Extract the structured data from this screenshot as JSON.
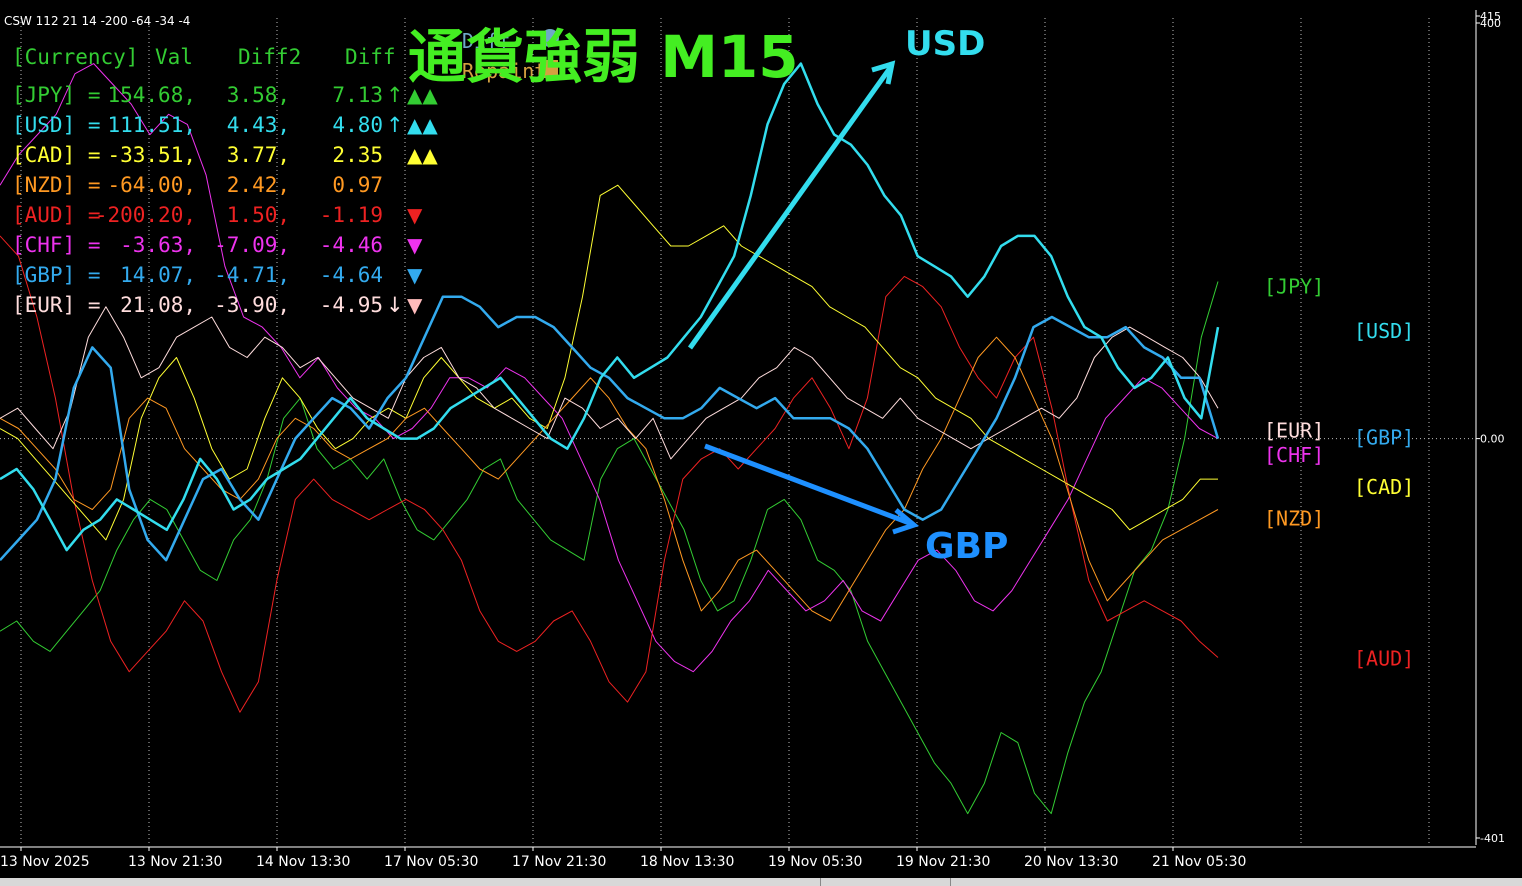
{
  "indicator_label": "CSW 112 21 14 -200 -64 -34 -4",
  "title": "通貨強弱  M15",
  "overlay_buttons": [
    {
      "label": "Diff",
      "color": "#6fa8c8"
    },
    {
      "label": "Repaint",
      "color": "#d4a040"
    }
  ],
  "table": {
    "headers": [
      "[Currency]",
      "Val",
      "Diff2",
      "Diff"
    ],
    "rows": [
      {
        "currency": "[JPY] =",
        "val": "154.68,",
        "diff2": "3.58,",
        "diff": "7.13",
        "mark": "↑",
        "signal": "▲▲",
        "color": "#33cc33",
        "signal_color": "#33cc33"
      },
      {
        "currency": "[USD] =",
        "val": "111.51,",
        "diff2": "4.43,",
        "diff": "4.80",
        "mark": "↑",
        "signal": "▲▲",
        "color": "#33ddee",
        "signal_color": "#33ddee"
      },
      {
        "currency": "[CAD] =",
        "val": "-33.51,",
        "diff2": "3.77,",
        "diff": "2.35",
        "mark": "",
        "signal": "▲▲",
        "color": "#ffff33",
        "signal_color": "#ffff33"
      },
      {
        "currency": "[NZD] =",
        "val": "-64.00,",
        "diff2": "2.42,",
        "diff": "0.97",
        "mark": "",
        "signal": "",
        "color": "#ff9922",
        "signal_color": "#ff9922"
      },
      {
        "currency": "[AUD] =",
        "val": "-200.20,",
        "diff2": "1.50,",
        "diff": "-1.19",
        "mark": "",
        "signal": "▼",
        "color": "#ee2222",
        "signal_color": "#ee2222"
      },
      {
        "currency": "[CHF] =",
        "val": "-3.63,",
        "diff2": "-7.09,",
        "diff": "-4.46",
        "mark": "",
        "signal": "▼",
        "color": "#ee33ee",
        "signal_color": "#ee33ee"
      },
      {
        "currency": "[GBP] =",
        "val": "14.07,",
        "diff2": "-4.71,",
        "diff": "-4.64",
        "mark": "",
        "signal": "▼",
        "color": "#33aaee",
        "signal_color": "#33aaee"
      },
      {
        "currency": "[EUR] =",
        "val": "21.08,",
        "diff2": "-3.90,",
        "diff": "-4.95",
        "mark": "↓",
        "signal": "▼",
        "color": "#ffdddd",
        "signal_color": "#ffbbbb"
      }
    ]
  },
  "annotations": {
    "usd": {
      "label": "USD",
      "color": "#33ddee"
    },
    "gbp": {
      "label": "GBP",
      "color": "#1e90ff"
    }
  },
  "chart_data": {
    "type": "line",
    "ylim": [
      -401,
      415
    ],
    "y_tick_labels": [
      "415",
      "400",
      "0.00",
      "-401"
    ],
    "x_tick_labels": [
      "13 Nov 2025",
      "13 Nov 21:30",
      "14 Nov 13:30",
      "17 Nov 05:30",
      "17 Nov 21:30",
      "18 Nov 13:30",
      "19 Nov 05:30",
      "19 Nov 21:30",
      "20 Nov 13:30",
      "21 Nov 05:30"
    ],
    "grid": true,
    "right_labels": [
      {
        "label": "[JPY]",
        "value": 151,
        "color": "#33cc33"
      },
      {
        "label": "[USD]",
        "value": 107,
        "color": "#33ddee"
      },
      {
        "label": "[EUR]",
        "value": 9,
        "color": "#ffdddd"
      },
      {
        "label": "[GBP]",
        "value": 2,
        "color": "#33aaee"
      },
      {
        "label": "[CHF]",
        "value": -15,
        "color": "#ee33ee"
      },
      {
        "label": "[CAD]",
        "value": -47,
        "color": "#ffff33"
      },
      {
        "label": "[NZD]",
        "value": -78,
        "color": "#ff9922"
      },
      {
        "label": "[AUD]",
        "value": -216,
        "color": "#ee2222"
      }
    ],
    "series": [
      {
        "name": "JPY",
        "color": "#33cc33",
        "width": 1,
        "values": [
          -190,
          -180,
          -200,
          -210,
          -190,
          -170,
          -150,
          -110,
          -80,
          -60,
          -70,
          -100,
          -130,
          -140,
          -100,
          -80,
          -40,
          20,
          40,
          -10,
          -30,
          -20,
          -40,
          -20,
          -60,
          -90,
          -100,
          -80,
          -60,
          -30,
          -20,
          -60,
          -80,
          -100,
          -110,
          -120,
          -40,
          -10,
          0,
          -30,
          -60,
          -90,
          -140,
          -170,
          -160,
          -120,
          -70,
          -60,
          -80,
          -120,
          -130,
          -150,
          -200,
          -230,
          -260,
          -290,
          -320,
          -340,
          -370,
          -340,
          -290,
          -300,
          -350,
          -370,
          -310,
          -260,
          -230,
          -180,
          -130,
          -110,
          -70,
          0,
          100,
          155
        ]
      },
      {
        "name": "USD",
        "color": "#33ddee",
        "width": 2.5,
        "values": [
          -40,
          -30,
          -50,
          -80,
          -110,
          -90,
          -80,
          -60,
          -70,
          -80,
          -90,
          -60,
          -20,
          -40,
          -70,
          -60,
          -40,
          -30,
          -20,
          0,
          20,
          40,
          20,
          10,
          0,
          0,
          10,
          30,
          40,
          50,
          60,
          40,
          20,
          0,
          -10,
          20,
          60,
          80,
          60,
          70,
          80,
          100,
          120,
          150,
          180,
          240,
          310,
          350,
          370,
          330,
          300,
          290,
          270,
          240,
          220,
          180,
          170,
          160,
          140,
          160,
          190,
          200,
          200,
          180,
          140,
          110,
          100,
          70,
          50,
          60,
          80,
          40,
          20,
          110
        ]
      },
      {
        "name": "GBP",
        "color": "#33aaee",
        "width": 2.5,
        "values": [
          -120,
          -100,
          -80,
          -40,
          50,
          90,
          70,
          -50,
          -100,
          -120,
          -80,
          -40,
          -30,
          -60,
          -80,
          -40,
          0,
          20,
          40,
          30,
          10,
          40,
          60,
          100,
          140,
          140,
          130,
          110,
          120,
          120,
          110,
          90,
          70,
          60,
          40,
          30,
          20,
          20,
          30,
          50,
          40,
          30,
          40,
          20,
          20,
          20,
          10,
          -10,
          -40,
          -70,
          -80,
          -70,
          -40,
          -10,
          20,
          60,
          110,
          120,
          110,
          100,
          100,
          110,
          90,
          80,
          60,
          60,
          0
        ]
      },
      {
        "name": "EUR",
        "color": "#ffdddd",
        "width": 1,
        "values": [
          20,
          30,
          10,
          -10,
          30,
          100,
          130,
          100,
          60,
          70,
          100,
          110,
          120,
          90,
          80,
          100,
          90,
          70,
          80,
          60,
          40,
          30,
          20,
          60,
          80,
          90,
          60,
          50,
          30,
          20,
          10,
          0,
          40,
          30,
          10,
          20,
          0,
          20,
          -20,
          0,
          20,
          30,
          40,
          60,
          70,
          90,
          80,
          60,
          40,
          30,
          20,
          40,
          20,
          10,
          0,
          -10,
          0,
          10,
          20,
          30,
          20,
          40,
          80,
          100,
          110,
          100,
          90,
          80,
          60,
          30
        ]
      },
      {
        "name": "CHF",
        "color": "#ee33ee",
        "width": 1,
        "values": [
          250,
          280,
          300,
          320,
          360,
          370,
          350,
          330,
          300,
          320,
          310,
          260,
          170,
          120,
          110,
          90,
          60,
          80,
          50,
          30,
          20,
          0,
          10,
          30,
          60,
          60,
          50,
          70,
          60,
          40,
          20,
          -20,
          -60,
          -120,
          -160,
          -200,
          -220,
          -230,
          -210,
          -180,
          -160,
          -130,
          -150,
          -170,
          -160,
          -140,
          -170,
          -180,
          -150,
          -120,
          -110,
          -130,
          -160,
          -170,
          -150,
          -120,
          -90,
          -60,
          -20,
          20,
          40,
          60,
          50,
          30,
          10,
          0
        ]
      },
      {
        "name": "CAD",
        "color": "#ffff33",
        "width": 1,
        "values": [
          10,
          0,
          -20,
          -40,
          -60,
          -80,
          -100,
          -60,
          20,
          60,
          80,
          40,
          -10,
          -40,
          -30,
          20,
          60,
          40,
          10,
          -10,
          0,
          20,
          30,
          20,
          60,
          80,
          60,
          40,
          30,
          40,
          20,
          10,
          60,
          140,
          240,
          250,
          230,
          210,
          190,
          190,
          200,
          210,
          190,
          180,
          170,
          160,
          150,
          130,
          120,
          110,
          90,
          70,
          60,
          40,
          30,
          20,
          0,
          -10,
          -20,
          -30,
          -40,
          -50,
          -60,
          -70,
          -90,
          -80,
          -70,
          -60,
          -40,
          -40
        ]
      },
      {
        "name": "NZD",
        "color": "#ff9922",
        "width": 1,
        "values": [
          20,
          10,
          -10,
          -30,
          -60,
          -70,
          -50,
          20,
          40,
          30,
          -10,
          -30,
          -50,
          -60,
          -40,
          0,
          20,
          10,
          -10,
          -20,
          -10,
          0,
          20,
          30,
          10,
          -10,
          -30,
          -40,
          -20,
          0,
          20,
          40,
          60,
          40,
          10,
          -10,
          -60,
          -120,
          -170,
          -150,
          -120,
          -110,
          -130,
          -150,
          -170,
          -180,
          -150,
          -120,
          -90,
          -70,
          -30,
          0,
          40,
          80,
          100,
          80,
          40,
          0,
          -60,
          -120,
          -160,
          -140,
          -120,
          -100,
          -90,
          -80,
          -70
        ]
      },
      {
        "name": "AUD",
        "color": "#ee2222",
        "width": 1,
        "values": [
          200,
          180,
          120,
          40,
          -60,
          -140,
          -200,
          -230,
          -210,
          -190,
          -160,
          -180,
          -230,
          -270,
          -240,
          -140,
          -60,
          -40,
          -60,
          -70,
          -80,
          -70,
          -60,
          -70,
          -90,
          -120,
          -170,
          -200,
          -210,
          -200,
          -180,
          -170,
          -200,
          -240,
          -260,
          -230,
          -120,
          -40,
          -20,
          -10,
          -30,
          -10,
          10,
          40,
          60,
          30,
          -10,
          40,
          140,
          160,
          150,
          130,
          90,
          60,
          40,
          80,
          100,
          30,
          -60,
          -140,
          -180,
          -170,
          -160,
          -170,
          -180,
          -200,
          -216
        ]
      }
    ]
  }
}
